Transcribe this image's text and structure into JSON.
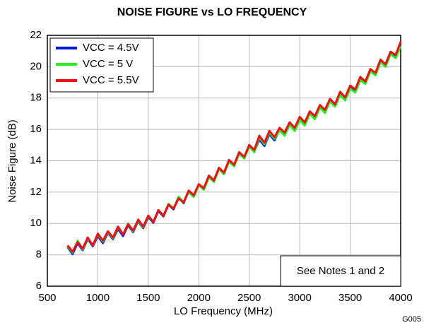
{
  "chart_data": {
    "type": "line",
    "title": "NOISE FIGURE vs LO FREQUENCY",
    "xlabel": "LO Frequency (MHz)",
    "ylabel": "Noise Figure (dB)",
    "annotation": "See Notes 1 and 2",
    "figure_id": "G005",
    "x": [
      700,
      750,
      800,
      850,
      900,
      950,
      1000,
      1050,
      1100,
      1150,
      1200,
      1250,
      1300,
      1350,
      1400,
      1450,
      1500,
      1550,
      1600,
      1650,
      1700,
      1750,
      1800,
      1850,
      1900,
      1950,
      2000,
      2050,
      2100,
      2150,
      2200,
      2250,
      2300,
      2350,
      2400,
      2450,
      2500,
      2550,
      2600,
      2650,
      2700,
      2750,
      2800,
      2850,
      2900,
      2950,
      3000,
      3050,
      3100,
      3150,
      3200,
      3250,
      3300,
      3350,
      3400,
      3450,
      3500,
      3550,
      3600,
      3650,
      3700,
      3750,
      3800,
      3850,
      3900,
      3950,
      4000
    ],
    "series": [
      {
        "name": "VCC = 4.5V",
        "color": "#0018d8",
        "values": [
          8.5,
          8.05,
          8.75,
          8.3,
          9.0,
          8.55,
          9.2,
          8.75,
          9.4,
          9.0,
          9.65,
          9.2,
          9.9,
          9.45,
          10.15,
          9.7,
          10.4,
          10.05,
          10.8,
          10.45,
          11.2,
          10.9,
          11.65,
          11.3,
          12.05,
          11.75,
          12.5,
          12.2,
          13.0,
          12.7,
          13.5,
          13.2,
          14.0,
          13.7,
          14.5,
          14.2,
          15.0,
          14.6,
          15.35,
          14.95,
          15.7,
          15.3,
          16.0,
          15.65,
          16.35,
          16.0,
          16.7,
          16.35,
          17.1,
          16.75,
          17.5,
          17.15,
          17.9,
          17.55,
          18.3,
          17.95,
          18.7,
          18.45,
          19.25,
          19.0,
          19.8,
          19.55,
          20.4,
          20.15,
          20.95,
          20.7,
          21.5
        ]
      },
      {
        "name": "VCC = 5 V",
        "color": "#22ee22",
        "values": [
          8.55,
          8.15,
          8.9,
          8.35,
          9.05,
          8.6,
          9.3,
          8.85,
          9.45,
          9.05,
          9.75,
          9.3,
          10.0,
          9.5,
          10.2,
          9.75,
          10.45,
          10.1,
          10.85,
          10.5,
          11.25,
          10.95,
          11.7,
          11.35,
          12.0,
          11.7,
          12.45,
          12.15,
          12.95,
          12.65,
          13.45,
          13.15,
          13.95,
          13.65,
          14.45,
          14.15,
          14.9,
          14.55,
          15.5,
          15.05,
          15.8,
          15.4,
          15.95,
          15.6,
          16.3,
          15.9,
          16.6,
          16.25,
          17.0,
          16.65,
          17.4,
          17.05,
          17.8,
          17.45,
          18.2,
          17.85,
          18.6,
          18.35,
          19.15,
          18.9,
          19.7,
          19.45,
          20.3,
          20.0,
          20.8,
          20.55,
          21.3
        ]
      },
      {
        "name": "VCC = 5.5V",
        "color": "#ee1111",
        "values": [
          8.6,
          8.2,
          8.8,
          8.4,
          9.1,
          8.6,
          9.35,
          8.9,
          9.5,
          9.1,
          9.8,
          9.3,
          9.95,
          9.55,
          10.25,
          9.8,
          10.5,
          10.1,
          10.85,
          10.5,
          11.2,
          10.95,
          11.6,
          11.35,
          12.1,
          11.8,
          12.5,
          12.25,
          13.05,
          12.75,
          13.55,
          13.25,
          14.05,
          13.75,
          14.55,
          14.25,
          15.0,
          14.7,
          15.6,
          15.15,
          15.9,
          15.5,
          16.1,
          15.8,
          16.45,
          16.1,
          16.8,
          16.45,
          17.15,
          16.85,
          17.55,
          17.25,
          17.95,
          17.6,
          18.4,
          18.05,
          18.8,
          18.55,
          19.35,
          19.05,
          19.85,
          19.6,
          20.45,
          20.15,
          20.95,
          20.75,
          21.6
        ]
      }
    ],
    "xlim": [
      500,
      4000
    ],
    "xticks": [
      500,
      1000,
      1500,
      2000,
      2500,
      3000,
      3500,
      4000
    ],
    "ylim": [
      6,
      22
    ],
    "yticks": [
      6,
      8,
      10,
      12,
      14,
      16,
      18,
      20,
      22
    ],
    "grid": true,
    "legend": "upper left"
  }
}
